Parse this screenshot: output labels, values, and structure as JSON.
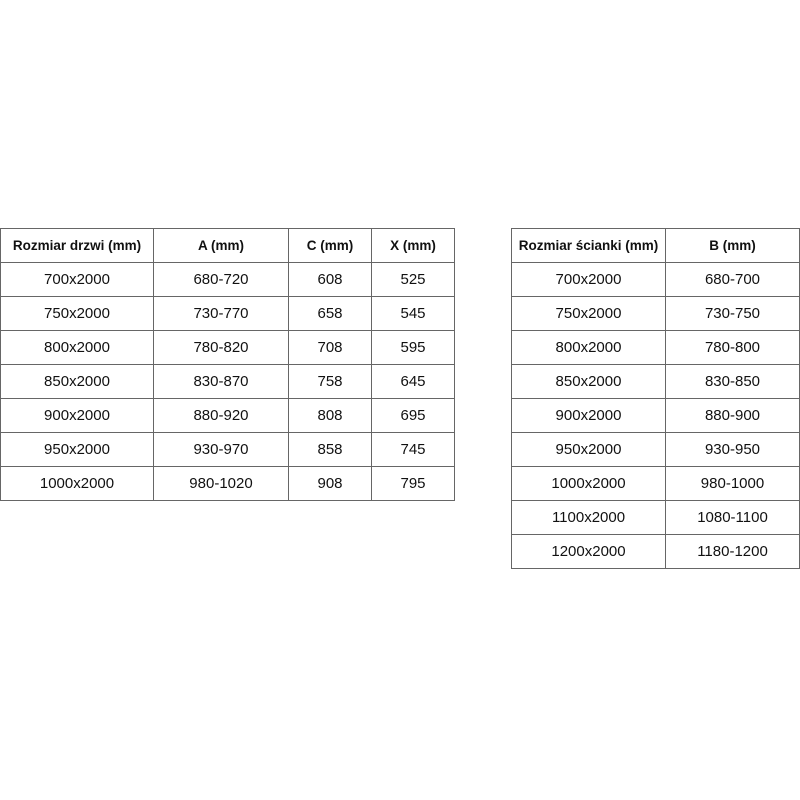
{
  "door_table": {
    "headers": [
      "Rozmiar drzwi (mm)",
      "A (mm)",
      "C (mm)",
      "X (mm)"
    ],
    "rows": [
      [
        "700x2000",
        "680-720",
        "608",
        "525"
      ],
      [
        "750x2000",
        "730-770",
        "658",
        "545"
      ],
      [
        "800x2000",
        "780-820",
        "708",
        "595"
      ],
      [
        "850x2000",
        "830-870",
        "758",
        "645"
      ],
      [
        "900x2000",
        "880-920",
        "808",
        "695"
      ],
      [
        "950x2000",
        "930-970",
        "858",
        "745"
      ],
      [
        "1000x2000",
        "980-1020",
        "908",
        "795"
      ]
    ]
  },
  "wall_table": {
    "headers": [
      "Rozmiar ścianki (mm)",
      "B (mm)"
    ],
    "rows": [
      [
        "700x2000",
        "680-700"
      ],
      [
        "750x2000",
        "730-750"
      ],
      [
        "800x2000",
        "780-800"
      ],
      [
        "850x2000",
        "830-850"
      ],
      [
        "900x2000",
        "880-900"
      ],
      [
        "950x2000",
        "930-950"
      ],
      [
        "1000x2000",
        "980-1000"
      ],
      [
        "1100x2000",
        "1080-1100"
      ],
      [
        "1200x2000",
        "1180-1200"
      ]
    ]
  }
}
